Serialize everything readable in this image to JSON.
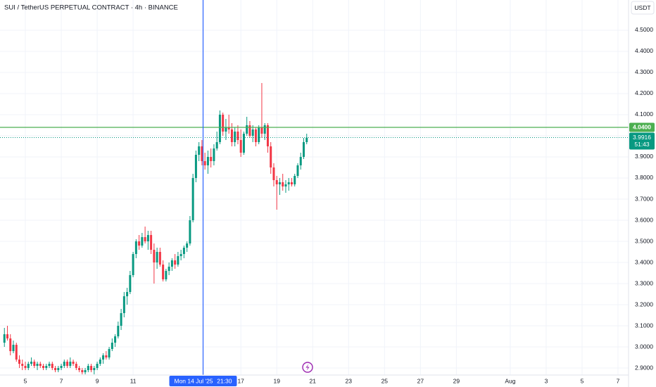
{
  "chart_data": {
    "type": "candlestick",
    "title": "SUI / TetherUS PERPETUAL CONTRACT · 4h · BINANCE",
    "currency": "USDT",
    "up_color": "#089981",
    "down_color": "#f23645",
    "grid": true,
    "x_start": 3.833,
    "ohlc": [
      [
        3.02,
        3.09,
        3.0,
        3.06
      ],
      [
        3.06,
        3.1,
        3.03,
        3.04
      ],
      [
        3.04,
        3.06,
        2.96,
        2.98
      ],
      [
        2.98,
        3.03,
        2.97,
        3.01
      ],
      [
        3.01,
        3.02,
        2.93,
        2.94
      ],
      [
        2.94,
        2.96,
        2.9,
        2.92
      ],
      [
        2.92,
        2.94,
        2.89,
        2.91
      ],
      [
        2.91,
        2.93,
        2.89,
        2.9
      ],
      [
        2.9,
        2.93,
        2.89,
        2.92
      ],
      [
        2.92,
        2.95,
        2.91,
        2.93
      ],
      [
        2.93,
        2.94,
        2.9,
        2.91
      ],
      [
        2.91,
        2.93,
        2.89,
        2.92
      ],
      [
        2.92,
        2.93,
        2.9,
        2.91
      ],
      [
        2.91,
        2.92,
        2.89,
        2.9
      ],
      [
        2.9,
        2.92,
        2.89,
        2.91
      ],
      [
        2.91,
        2.93,
        2.9,
        2.92
      ],
      [
        2.92,
        2.93,
        2.89,
        2.9
      ],
      [
        2.9,
        2.91,
        2.88,
        2.89
      ],
      [
        2.89,
        2.91,
        2.88,
        2.9
      ],
      [
        2.9,
        2.92,
        2.89,
        2.91
      ],
      [
        2.91,
        2.94,
        2.9,
        2.93
      ],
      [
        2.93,
        2.94,
        2.9,
        2.91
      ],
      [
        2.91,
        2.95,
        2.9,
        2.93
      ],
      [
        2.93,
        2.94,
        2.91,
        2.92
      ],
      [
        2.92,
        2.93,
        2.89,
        2.9
      ],
      [
        2.9,
        2.91,
        2.88,
        2.89
      ],
      [
        2.89,
        2.9,
        2.87,
        2.88
      ],
      [
        2.88,
        2.9,
        2.87,
        2.89
      ],
      [
        2.89,
        2.92,
        2.88,
        2.91
      ],
      [
        2.91,
        2.92,
        2.88,
        2.89
      ],
      [
        2.89,
        2.91,
        2.87,
        2.9
      ],
      [
        2.9,
        2.93,
        2.89,
        2.92
      ],
      [
        2.92,
        2.95,
        2.91,
        2.94
      ],
      [
        2.94,
        2.97,
        2.92,
        2.96
      ],
      [
        2.96,
        2.98,
        2.94,
        2.95
      ],
      [
        2.95,
        3.0,
        2.94,
        2.99
      ],
      [
        2.99,
        3.04,
        2.98,
        3.02
      ],
      [
        3.02,
        3.06,
        3.0,
        3.05
      ],
      [
        3.05,
        3.12,
        3.04,
        3.1
      ],
      [
        3.1,
        3.18,
        3.08,
        3.16
      ],
      [
        3.16,
        3.26,
        3.14,
        3.24
      ],
      [
        3.24,
        3.28,
        3.2,
        3.26
      ],
      [
        3.26,
        3.36,
        3.25,
        3.34
      ],
      [
        3.34,
        3.45,
        3.33,
        3.44
      ],
      [
        3.44,
        3.51,
        3.42,
        3.5
      ],
      [
        3.5,
        3.53,
        3.46,
        3.48
      ],
      [
        3.48,
        3.54,
        3.47,
        3.52
      ],
      [
        3.52,
        3.57,
        3.49,
        3.5
      ],
      [
        3.5,
        3.55,
        3.46,
        3.53
      ],
      [
        3.53,
        3.55,
        3.44,
        3.46
      ],
      [
        3.46,
        3.49,
        3.3,
        3.4
      ],
      [
        3.4,
        3.47,
        3.37,
        3.45
      ],
      [
        3.45,
        3.47,
        3.38,
        3.39
      ],
      [
        3.39,
        3.41,
        3.31,
        3.32
      ],
      [
        3.32,
        3.37,
        3.31,
        3.36
      ],
      [
        3.36,
        3.4,
        3.34,
        3.38
      ],
      [
        3.38,
        3.42,
        3.36,
        3.41
      ],
      [
        3.41,
        3.44,
        3.37,
        3.39
      ],
      [
        3.39,
        3.45,
        3.38,
        3.43
      ],
      [
        3.43,
        3.46,
        3.41,
        3.44
      ],
      [
        3.44,
        3.48,
        3.42,
        3.47
      ],
      [
        3.47,
        3.5,
        3.45,
        3.49
      ],
      [
        3.49,
        3.62,
        3.48,
        3.6
      ],
      [
        3.6,
        3.82,
        3.59,
        3.8
      ],
      [
        3.8,
        3.93,
        3.78,
        3.91
      ],
      [
        3.91,
        3.97,
        3.88,
        3.95
      ],
      [
        3.95,
        3.98,
        3.86,
        3.88
      ],
      [
        3.88,
        3.92,
        3.84,
        3.86
      ],
      [
        3.86,
        3.93,
        3.82,
        3.9
      ],
      [
        3.9,
        3.94,
        3.85,
        3.88
      ],
      [
        3.88,
        3.96,
        3.86,
        3.94
      ],
      [
        3.94,
        4.02,
        3.93,
        3.97
      ],
      [
        3.97,
        4.12,
        3.96,
        4.1
      ],
      [
        4.1,
        4.11,
        4.0,
        4.02
      ],
      [
        4.02,
        4.08,
        3.98,
        4.04
      ],
      [
        4.04,
        4.1,
        4.01,
        4.03
      ],
      [
        4.03,
        4.06,
        3.95,
        3.97
      ],
      [
        3.97,
        4.04,
        3.95,
        4.02
      ],
      [
        4.02,
        4.05,
        3.96,
        3.98
      ],
      [
        3.98,
        4.03,
        3.9,
        3.92
      ],
      [
        3.92,
        4.02,
        3.91,
        4.01
      ],
      [
        4.01,
        4.09,
        4.0,
        4.05
      ],
      [
        4.05,
        4.07,
        3.99,
        4.0
      ],
      [
        4.0,
        4.05,
        3.97,
        4.03
      ],
      [
        4.03,
        4.04,
        3.95,
        3.97
      ],
      [
        3.97,
        4.05,
        3.96,
        4.04
      ],
      [
        4.04,
        4.25,
        3.99,
        4.01
      ],
      [
        4.01,
        4.06,
        3.98,
        4.05
      ],
      [
        4.05,
        4.06,
        3.92,
        3.95
      ],
      [
        3.95,
        3.97,
        3.82,
        3.85
      ],
      [
        3.85,
        3.87,
        3.76,
        3.79
      ],
      [
        3.79,
        3.81,
        3.65,
        3.77
      ],
      [
        3.77,
        3.8,
        3.72,
        3.78
      ],
      [
        3.78,
        3.82,
        3.74,
        3.76
      ],
      [
        3.76,
        3.79,
        3.73,
        3.77
      ],
      [
        3.77,
        3.8,
        3.74,
        3.78
      ],
      [
        3.78,
        3.8,
        3.76,
        3.77
      ],
      [
        3.77,
        3.82,
        3.76,
        3.81
      ],
      [
        3.81,
        3.87,
        3.8,
        3.86
      ],
      [
        3.86,
        3.92,
        3.84,
        3.9
      ],
      [
        3.9,
        3.99,
        3.89,
        3.97
      ],
      [
        3.97,
        4.01,
        3.96,
        3.9916
      ]
    ],
    "xlim": [
      3.588,
      38.588
    ],
    "xticks": [
      5,
      7,
      9,
      11,
      17,
      19,
      21,
      23,
      25,
      27,
      29,
      {
        "value": 32,
        "label": "Aug"
      },
      {
        "value": 34,
        "label": "3"
      },
      {
        "value": 36,
        "label": "5"
      },
      {
        "value": 38,
        "label": "7"
      }
    ],
    "ylim": [
      2.8667,
      4.6433
    ],
    "yticks": [
      {
        "value": 2.9,
        "label": "2.9000"
      },
      {
        "value": 3.0,
        "label": "3.0000"
      },
      {
        "value": 3.1,
        "label": "3.1000"
      },
      {
        "value": 3.2,
        "label": "3.2000"
      },
      {
        "value": 3.3,
        "label": "3.3000"
      },
      {
        "value": 3.4,
        "label": "3.4000"
      },
      {
        "value": 3.5,
        "label": "3.5000"
      },
      {
        "value": 3.6,
        "label": "3.6000"
      },
      {
        "value": 3.7,
        "label": "3.7000"
      },
      {
        "value": 3.8,
        "label": "3.8000"
      },
      {
        "value": 3.9,
        "label": "3.9000"
      },
      {
        "value": 4.0,
        "label": "4.0000"
      },
      {
        "value": 4.1,
        "label": "4.1000"
      },
      {
        "value": 4.2,
        "label": "4.2000"
      },
      {
        "value": 4.3,
        "label": "4.3000"
      },
      {
        "value": 4.4,
        "label": "4.4000"
      },
      {
        "value": 4.5,
        "label": "4.5000"
      }
    ],
    "horizontal_line": {
      "value": 4.04,
      "label": "4.0400",
      "color": "#4caf50"
    },
    "last_price": {
      "value": 3.9916,
      "countdown": "51:43"
    },
    "crosshair": {
      "x": 14.896,
      "date": "Mon 14 Jul '25",
      "time": "21:30",
      "color": "#2962ff"
    }
  }
}
